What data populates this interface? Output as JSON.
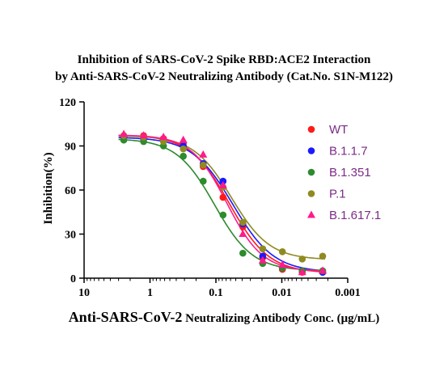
{
  "chart_data": {
    "type": "scatter",
    "title": [
      "Inhibition of SARS-CoV-2 Spike RBD:ACE2 Interaction",
      "by Anti-SARS-CoV-2 Neutralizing Antibody (Cat.No. S1N-M122)"
    ],
    "xlabel_main": "Anti-SARS-CoV-2",
    "xlabel_rest": " Neutralizing Antibody Conc. (μg/mL)",
    "ylabel": "Inhibition(%)",
    "x_scale": "log",
    "x_reversed": true,
    "xlim": [
      10,
      0.001
    ],
    "ylim": [
      0,
      120
    ],
    "x_ticks": [
      10,
      1,
      0.1,
      0.01,
      0.001
    ],
    "x_tick_labels": [
      "10",
      "1",
      "0.1",
      "0.01",
      "0.001"
    ],
    "y_ticks": [
      0,
      30,
      60,
      90,
      120
    ],
    "y_tick_labels": [
      "0",
      "30",
      "60",
      "90",
      "120"
    ],
    "legend_position": "top-right",
    "x": [
      2.5,
      1.25,
      0.625,
      0.3125,
      0.156,
      0.078,
      0.039,
      0.0195,
      0.0098,
      0.0049,
      0.0024
    ],
    "series": [
      {
        "name": "WT",
        "color": "#ff1a1a",
        "marker": "circle",
        "values": [
          97,
          97,
          95,
          92,
          76,
          55,
          35,
          14,
          6,
          4,
          4
        ],
        "fit": {
          "top": 97.5,
          "bottom": 3.5,
          "ec50": 0.062,
          "hill": 1.45
        }
      },
      {
        "name": "B.1.1.7",
        "color": "#1a1aff",
        "marker": "circle",
        "values": [
          96,
          95,
          94,
          90,
          78,
          66,
          37,
          15,
          7,
          5,
          4
        ],
        "fit": {
          "top": 96,
          "bottom": 4,
          "ec50": 0.055,
          "hill": 1.4
        }
      },
      {
        "name": "B.1.351",
        "color": "#2e8b2e",
        "marker": "circle",
        "values": [
          94,
          93,
          90,
          83,
          66,
          43,
          17,
          10,
          7,
          5,
          5
        ],
        "fit": {
          "top": 95,
          "bottom": 5,
          "ec50": 0.105,
          "hill": 1.5
        }
      },
      {
        "name": "P.1",
        "color": "#8f8a22",
        "marker": "circle",
        "values": [
          97,
          96,
          93,
          88,
          77,
          62,
          38,
          20,
          18,
          13,
          15
        ],
        "fit": {
          "top": 97,
          "bottom": 12.5,
          "ec50": 0.058,
          "hill": 1.5
        }
      },
      {
        "name": "B.1.617.1",
        "color": "#ff1a8c",
        "marker": "triangle",
        "values": [
          98,
          97,
          96,
          94,
          84,
          63,
          30,
          12,
          9,
          4,
          5
        ],
        "fit": {
          "top": 97.5,
          "bottom": 4.5,
          "ec50": 0.068,
          "hill": 1.6
        }
      }
    ]
  }
}
